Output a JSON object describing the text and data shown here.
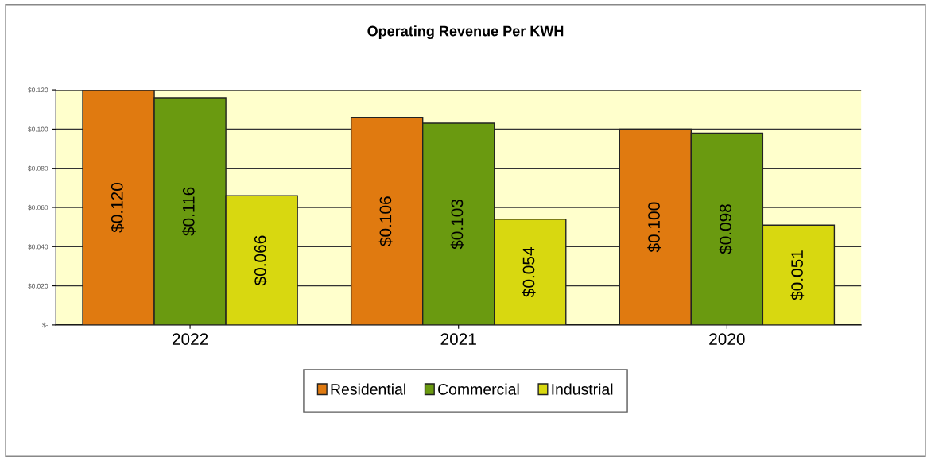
{
  "chart_data": {
    "type": "bar",
    "title": "Operating Revenue Per KWH",
    "categories": [
      "2022",
      "2021",
      "2020"
    ],
    "series": [
      {
        "name": "Residential",
        "color": "#e07a10",
        "values": [
          0.12,
          0.106,
          0.1
        ],
        "value_labels": [
          "$0.120",
          "$0.106",
          "$0.100"
        ]
      },
      {
        "name": "Commercial",
        "color": "#6a9a10",
        "values": [
          0.116,
          0.103,
          0.098
        ],
        "value_labels": [
          "$0.116",
          "$0.103",
          "$0.098"
        ]
      },
      {
        "name": "Industrial",
        "color": "#d8d810",
        "values": [
          0.066,
          0.054,
          0.051
        ],
        "value_labels": [
          "$0.066",
          "$0.054",
          "$0.051"
        ]
      }
    ],
    "ylim": [
      0,
      0.12
    ],
    "yticks": [
      {
        "value": 0,
        "label": "$-"
      },
      {
        "value": 0.02,
        "label": "$0.020"
      },
      {
        "value": 0.04,
        "label": "$0.040"
      },
      {
        "value": 0.06,
        "label": "$0.060"
      },
      {
        "value": 0.08,
        "label": "$0.080"
      },
      {
        "value": 0.1,
        "label": "$0.100"
      },
      {
        "value": 0.12,
        "label": "$0.120"
      }
    ],
    "grid": "y",
    "legend": "bottom"
  }
}
